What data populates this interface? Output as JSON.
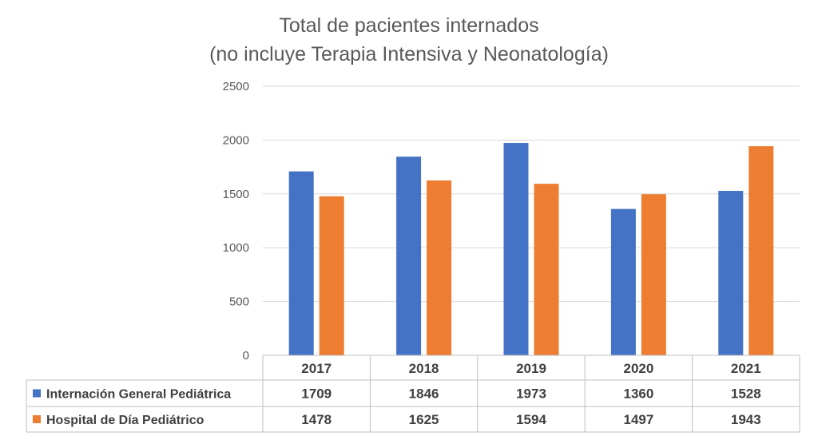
{
  "chart_data": {
    "type": "bar",
    "title": "Total de pacientes internados",
    "subtitle": "(no incluye Terapia Intensiva y Neonatología)",
    "categories": [
      "2017",
      "2018",
      "2019",
      "2020",
      "2021"
    ],
    "series": [
      {
        "name": "Internación General Pediátrica",
        "values": [
          1709,
          1846,
          1973,
          1360,
          1528
        ],
        "color": "#4472C4"
      },
      {
        "name": "Hospital de Día Pediátrico",
        "values": [
          1478,
          1625,
          1594,
          1497,
          1943
        ],
        "color": "#ED7D31"
      }
    ],
    "yticks": [
      "0",
      "500",
      "1000",
      "1500",
      "2000",
      "2500"
    ],
    "ylim": [
      0,
      2500
    ],
    "grid": true,
    "legend": "data table"
  }
}
